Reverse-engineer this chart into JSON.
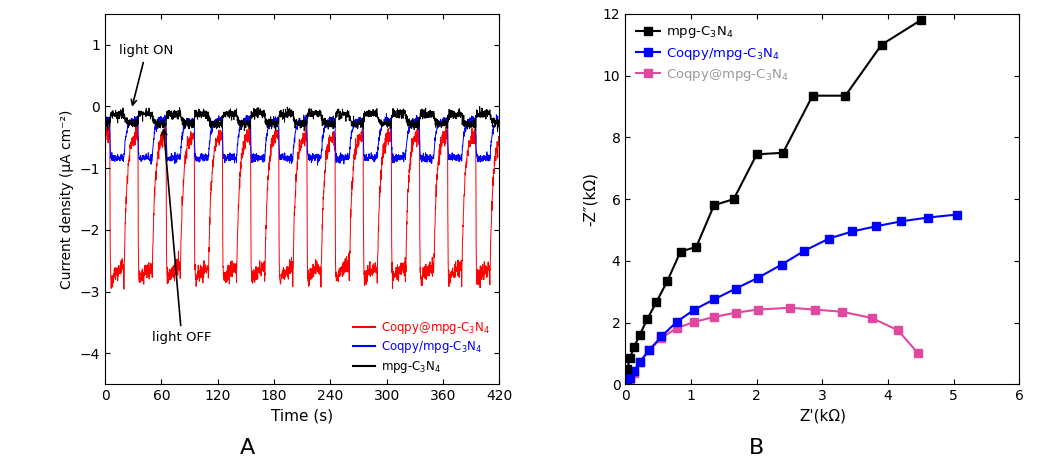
{
  "panel_A": {
    "xlabel": "Time (s)",
    "ylabel": "Current density (μA cm⁻²)",
    "xlim": [
      0,
      420
    ],
    "ylim": [
      -4.5,
      1.5
    ],
    "yticks": [
      -4,
      -3,
      -2,
      -1,
      0,
      1
    ],
    "xticks": [
      0,
      60,
      120,
      180,
      240,
      300,
      360,
      420
    ],
    "period": 30,
    "light_on_first": 5,
    "red_on": -2.85,
    "red_off": -0.45,
    "red_noise": 0.07,
    "blue_on": -0.85,
    "blue_off": -0.22,
    "blue_noise": 0.035,
    "black_on": -0.12,
    "black_off": -0.28,
    "black_noise": 0.04
  },
  "panel_B": {
    "xlabel": "Z'(kΩ)",
    "ylabel": "-Z″(kΩ)",
    "xlim": [
      0,
      6
    ],
    "ylim": [
      0,
      12
    ],
    "xticks": [
      0,
      1,
      2,
      3,
      4,
      5,
      6
    ],
    "yticks": [
      0,
      2,
      4,
      6,
      8,
      10,
      12
    ],
    "black_x": [
      0.03,
      0.07,
      0.13,
      0.22,
      0.33,
      0.47,
      0.64,
      0.84,
      1.08,
      1.35,
      1.65,
      2.0,
      2.4,
      2.85,
      3.35,
      3.9,
      4.5
    ],
    "black_y": [
      0.5,
      0.85,
      1.2,
      1.6,
      2.1,
      2.65,
      3.35,
      4.3,
      4.45,
      5.8,
      6.0,
      7.45,
      7.5,
      9.35,
      9.35,
      11.0,
      11.8
    ],
    "blue_x": [
      0.03,
      0.07,
      0.13,
      0.22,
      0.36,
      0.55,
      0.78,
      1.05,
      1.35,
      1.68,
      2.02,
      2.38,
      2.72,
      3.1,
      3.45,
      3.82,
      4.2,
      4.6,
      5.05
    ],
    "blue_y": [
      0.08,
      0.2,
      0.42,
      0.72,
      1.1,
      1.55,
      2.02,
      2.42,
      2.75,
      3.1,
      3.45,
      3.88,
      4.32,
      4.72,
      4.95,
      5.12,
      5.28,
      5.4,
      5.5
    ],
    "pink_x": [
      0.03,
      0.07,
      0.13,
      0.22,
      0.36,
      0.55,
      0.78,
      1.05,
      1.35,
      1.68,
      2.02,
      2.5,
      2.88,
      3.3,
      3.75,
      4.15,
      4.45
    ],
    "pink_y": [
      0.07,
      0.18,
      0.38,
      0.72,
      1.1,
      1.5,
      1.82,
      2.02,
      2.18,
      2.32,
      2.42,
      2.48,
      2.42,
      2.35,
      2.15,
      1.75,
      1.02
    ]
  }
}
